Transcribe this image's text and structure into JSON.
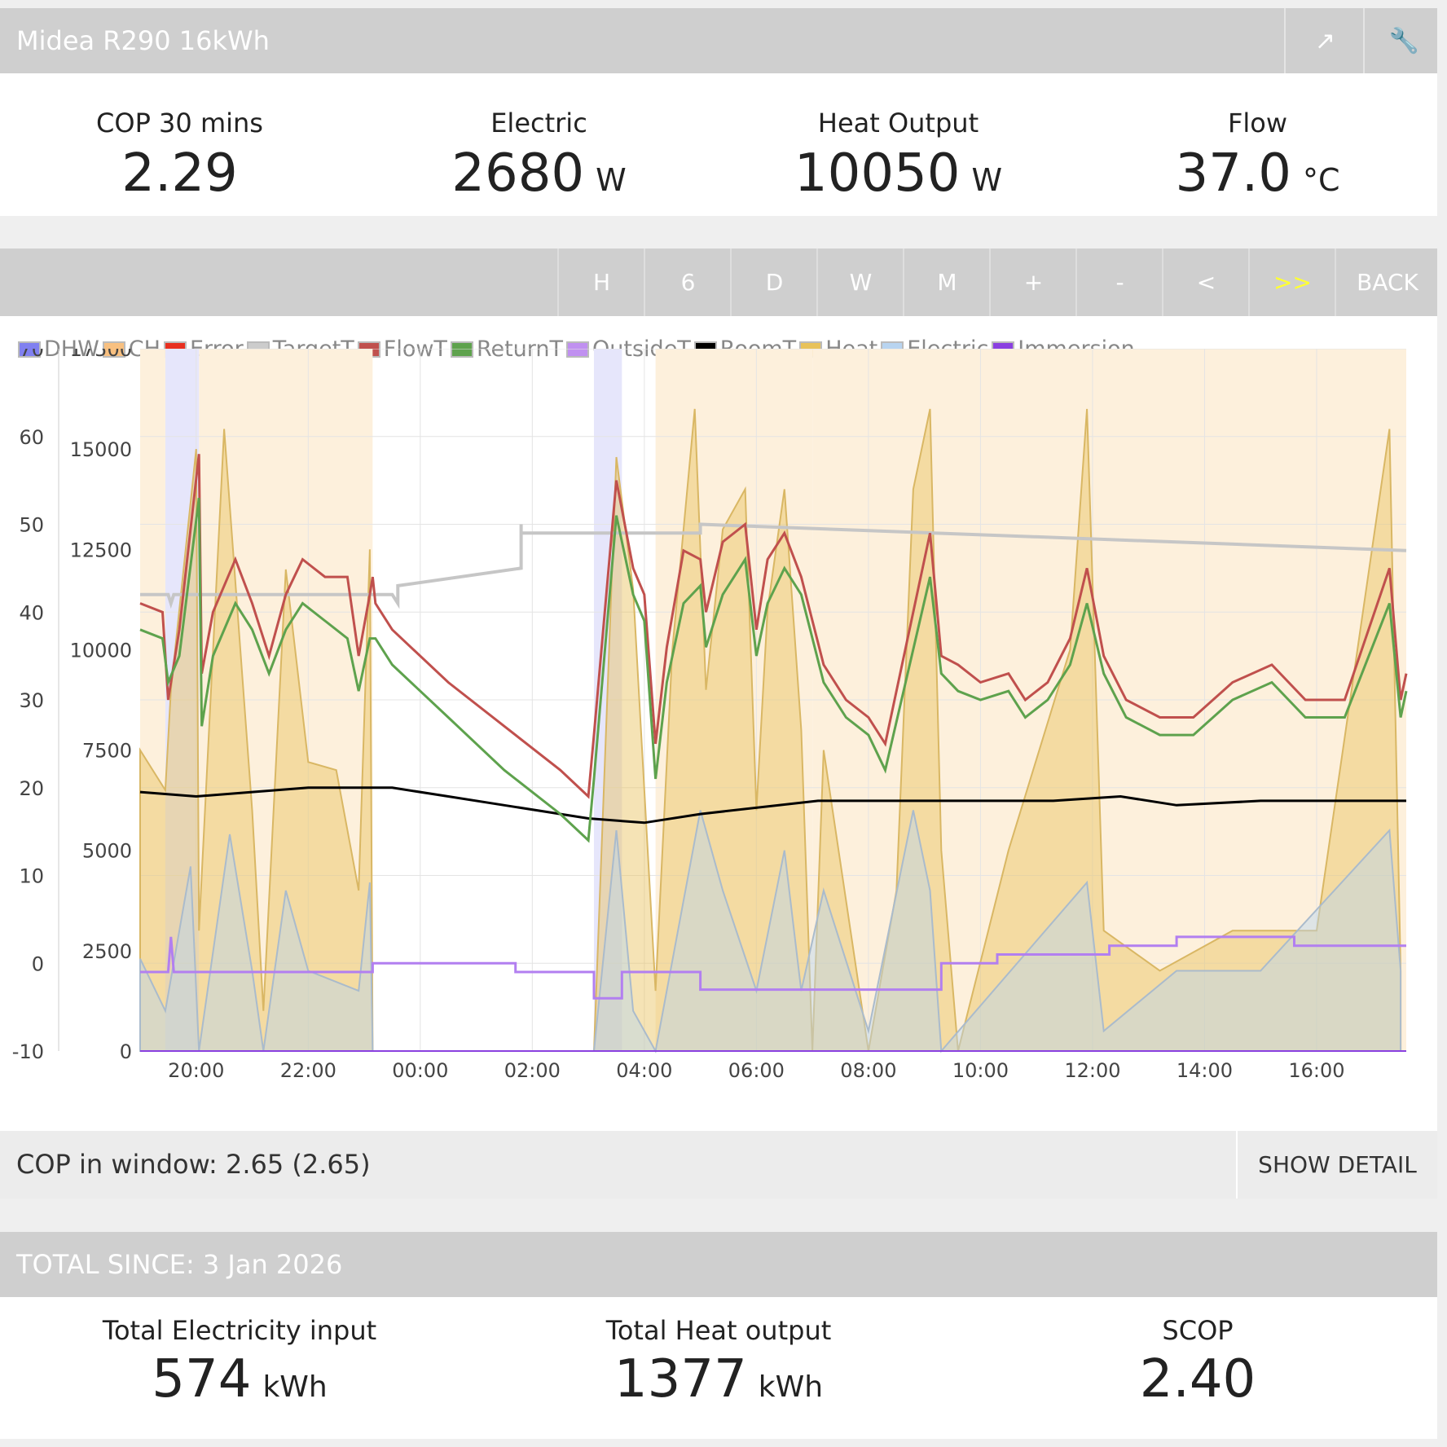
{
  "header": {
    "title": "Midea R290 16kWh",
    "share_icon": "share-icon",
    "settings_icon": "wrench-icon"
  },
  "stats": [
    {
      "label": "COP 30 mins",
      "value": "2.29",
      "unit": ""
    },
    {
      "label": "Electric",
      "value": "2680",
      "unit": "W"
    },
    {
      "label": "Heat Output",
      "value": "10050",
      "unit": "W"
    },
    {
      "label": "Flow",
      "value": "37.0",
      "unit": "°C"
    }
  ],
  "toolbar": {
    "buttons": [
      "H",
      "6",
      "D",
      "W",
      "M",
      "+",
      "-",
      "<",
      ">>",
      "BACK"
    ],
    "highlight_color": "#ffff33"
  },
  "legend": [
    {
      "name": "DHW",
      "color": "#8080f0"
    },
    {
      "name": "CH",
      "color": "#f8c080"
    },
    {
      "name": "Error",
      "color": "#e83020"
    },
    {
      "name": "TargetT",
      "color": "#cccccc"
    },
    {
      "name": "FlowT",
      "color": "#c0504d"
    },
    {
      "name": "ReturnT",
      "color": "#5ea24d"
    },
    {
      "name": "OutsideT",
      "color": "#c090f0"
    },
    {
      "name": "RoomT",
      "color": "#000000"
    },
    {
      "name": "Heat",
      "color": "#e8c25a"
    },
    {
      "name": "Electric",
      "color": "#b8d4f0"
    },
    {
      "name": "Immersion",
      "color": "#8a40e0"
    }
  ],
  "chart_data": {
    "type": "line",
    "x_unit": "hours since 19:00",
    "x_range": [
      0.0,
      22.6
    ],
    "x_ticks": [
      "20:00",
      "22:00",
      "00:00",
      "02:00",
      "04:00",
      "06:00",
      "08:00",
      "10:00",
      "12:00",
      "14:00",
      "16:00"
    ],
    "y_left": {
      "ticks": [
        70,
        60,
        50,
        40,
        30,
        20,
        10,
        0,
        -10
      ],
      "range": [
        -10,
        70
      ]
    },
    "y_right": {
      "ticks": [
        17500,
        15000,
        12500,
        10000,
        7500,
        5000,
        2500,
        0
      ],
      "range": [
        0,
        17500
      ]
    },
    "dhw_periods": [
      [
        0.45,
        1.05
      ],
      [
        8.1,
        8.6
      ]
    ],
    "ch_periods": [
      [
        0.0,
        0.45
      ],
      [
        1.05,
        4.15
      ],
      [
        9.2,
        12.0
      ],
      [
        12.0,
        22.6
      ]
    ],
    "series": [
      {
        "name": "TargetT",
        "axis": "left",
        "points": [
          [
            0,
            42
          ],
          [
            0.5,
            42
          ],
          [
            0.55,
            41
          ],
          [
            0.6,
            42
          ],
          [
            4.5,
            42
          ],
          [
            4.6,
            41
          ],
          [
            4.6,
            43
          ],
          [
            6.8,
            45
          ],
          [
            6.8,
            50
          ],
          [
            6.8,
            49
          ],
          [
            10,
            49
          ],
          [
            10,
            50
          ],
          [
            22.6,
            47
          ]
        ]
      },
      {
        "name": "FlowT",
        "axis": "left",
        "points": [
          [
            0,
            41
          ],
          [
            0.4,
            40
          ],
          [
            0.5,
            30
          ],
          [
            0.7,
            38
          ],
          [
            1.05,
            58
          ],
          [
            1.1,
            33
          ],
          [
            1.3,
            40
          ],
          [
            1.7,
            46
          ],
          [
            2.0,
            41
          ],
          [
            2.3,
            35
          ],
          [
            2.6,
            42
          ],
          [
            2.9,
            46
          ],
          [
            3.3,
            44
          ],
          [
            3.7,
            44
          ],
          [
            3.9,
            35
          ],
          [
            4.1,
            42
          ],
          [
            4.15,
            44
          ],
          [
            4.2,
            41
          ],
          [
            4.5,
            38
          ],
          [
            5.5,
            32
          ],
          [
            6.5,
            27
          ],
          [
            7.5,
            22
          ],
          [
            8.0,
            19
          ],
          [
            8.1,
            26
          ],
          [
            8.5,
            55
          ],
          [
            8.8,
            45
          ],
          [
            9.0,
            42
          ],
          [
            9.2,
            25
          ],
          [
            9.4,
            36
          ],
          [
            9.7,
            47
          ],
          [
            10,
            46
          ],
          [
            10.1,
            40
          ],
          [
            10.4,
            48
          ],
          [
            10.8,
            50
          ],
          [
            11.0,
            38
          ],
          [
            11.2,
            46
          ],
          [
            11.5,
            49
          ],
          [
            11.8,
            44
          ],
          [
            12.2,
            34
          ],
          [
            12.6,
            30
          ],
          [
            13.0,
            28
          ],
          [
            13.3,
            25
          ],
          [
            13.7,
            37
          ],
          [
            14.1,
            49
          ],
          [
            14.3,
            35
          ],
          [
            14.6,
            34
          ],
          [
            15.0,
            32
          ],
          [
            15.5,
            33
          ],
          [
            15.8,
            30
          ],
          [
            16.2,
            32
          ],
          [
            16.6,
            37
          ],
          [
            16.9,
            45
          ],
          [
            17.2,
            35
          ],
          [
            17.6,
            30
          ],
          [
            18.2,
            28
          ],
          [
            18.8,
            28
          ],
          [
            19.5,
            32
          ],
          [
            20.2,
            34
          ],
          [
            20.8,
            30
          ],
          [
            21.5,
            30
          ],
          [
            22.3,
            45
          ],
          [
            22.5,
            30
          ],
          [
            22.6,
            33
          ]
        ]
      },
      {
        "name": "ReturnT",
        "axis": "left",
        "points": [
          [
            0,
            38
          ],
          [
            0.4,
            37
          ],
          [
            0.5,
            32
          ],
          [
            0.7,
            35
          ],
          [
            1.05,
            53
          ],
          [
            1.1,
            27
          ],
          [
            1.3,
            35
          ],
          [
            1.7,
            41
          ],
          [
            2.0,
            38
          ],
          [
            2.3,
            33
          ],
          [
            2.6,
            38
          ],
          [
            2.9,
            41
          ],
          [
            3.3,
            39
          ],
          [
            3.7,
            37
          ],
          [
            3.9,
            31
          ],
          [
            4.1,
            37
          ],
          [
            4.2,
            37
          ],
          [
            4.5,
            34
          ],
          [
            5.5,
            28
          ],
          [
            6.5,
            22
          ],
          [
            7.5,
            17
          ],
          [
            8.0,
            14
          ],
          [
            8.1,
            21
          ],
          [
            8.5,
            51
          ],
          [
            8.8,
            42
          ],
          [
            9.0,
            39
          ],
          [
            9.2,
            21
          ],
          [
            9.4,
            32
          ],
          [
            9.7,
            41
          ],
          [
            10,
            43
          ],
          [
            10.1,
            36
          ],
          [
            10.4,
            42
          ],
          [
            10.8,
            46
          ],
          [
            11.0,
            35
          ],
          [
            11.2,
            41
          ],
          [
            11.5,
            45
          ],
          [
            11.8,
            42
          ],
          [
            12.2,
            32
          ],
          [
            12.6,
            28
          ],
          [
            13.0,
            26
          ],
          [
            13.3,
            22
          ],
          [
            13.7,
            33
          ],
          [
            14.1,
            44
          ],
          [
            14.3,
            33
          ],
          [
            14.6,
            31
          ],
          [
            15.0,
            30
          ],
          [
            15.5,
            31
          ],
          [
            15.8,
            28
          ],
          [
            16.2,
            30
          ],
          [
            16.6,
            34
          ],
          [
            16.9,
            41
          ],
          [
            17.2,
            33
          ],
          [
            17.6,
            28
          ],
          [
            18.2,
            26
          ],
          [
            18.8,
            26
          ],
          [
            19.5,
            30
          ],
          [
            20.2,
            32
          ],
          [
            20.8,
            28
          ],
          [
            21.5,
            28
          ],
          [
            22.3,
            41
          ],
          [
            22.5,
            28
          ],
          [
            22.6,
            31
          ]
        ]
      },
      {
        "name": "RoomT",
        "axis": "left",
        "points": [
          [
            0,
            19.5
          ],
          [
            1.0,
            19
          ],
          [
            2.0,
            19.5
          ],
          [
            3.0,
            20
          ],
          [
            4.5,
            20
          ],
          [
            5.5,
            19
          ],
          [
            6.5,
            18
          ],
          [
            8.0,
            16.5
          ],
          [
            9.0,
            16
          ],
          [
            10.0,
            17
          ],
          [
            12.1,
            18.5
          ],
          [
            16.3,
            18.5
          ],
          [
            17.5,
            19
          ],
          [
            18.5,
            18
          ],
          [
            20.0,
            18.5
          ],
          [
            22.6,
            18.5
          ]
        ]
      },
      {
        "name": "OutsideT",
        "axis": "left",
        "points": [
          [
            0,
            -1
          ],
          [
            0.5,
            -1
          ],
          [
            0.55,
            3
          ],
          [
            0.6,
            -1
          ],
          [
            4.15,
            -1
          ],
          [
            4.15,
            0
          ],
          [
            6.7,
            0
          ],
          [
            6.7,
            -1
          ],
          [
            8.1,
            -1
          ],
          [
            8.1,
            -4
          ],
          [
            8.6,
            -4
          ],
          [
            8.6,
            -1
          ],
          [
            10.0,
            -1
          ],
          [
            10.0,
            -3
          ],
          [
            14.3,
            -3
          ],
          [
            14.3,
            0
          ],
          [
            15.3,
            0
          ],
          [
            15.3,
            1
          ],
          [
            17.3,
            1
          ],
          [
            17.3,
            2
          ],
          [
            18.5,
            2
          ],
          [
            18.5,
            3
          ],
          [
            20.6,
            3
          ],
          [
            20.6,
            2
          ],
          [
            22.6,
            2
          ]
        ]
      },
      {
        "name": "Heat",
        "axis": "right",
        "points": [
          [
            0,
            7500
          ],
          [
            0.45,
            6500
          ],
          [
            0.55,
            9000
          ],
          [
            1.0,
            15000
          ],
          [
            1.05,
            3000
          ],
          [
            1.5,
            15500
          ],
          [
            2.0,
            6000
          ],
          [
            2.2,
            1000
          ],
          [
            2.6,
            12000
          ],
          [
            3.0,
            7200
          ],
          [
            3.5,
            7000
          ],
          [
            3.9,
            4000
          ],
          [
            4.1,
            12500
          ],
          [
            4.15,
            0
          ],
          [
            8.1,
            0
          ],
          [
            8.5,
            14800
          ],
          [
            8.8,
            11500
          ],
          [
            9.2,
            1500
          ],
          [
            9.5,
            10000
          ],
          [
            9.9,
            16000
          ],
          [
            10.1,
            9000
          ],
          [
            10.4,
            13000
          ],
          [
            10.8,
            14000
          ],
          [
            11.0,
            6000
          ],
          [
            11.2,
            11000
          ],
          [
            11.5,
            14000
          ],
          [
            11.8,
            8000
          ],
          [
            12.0,
            0
          ],
          [
            12.2,
            7500
          ],
          [
            13.0,
            0
          ],
          [
            13.5,
            4000
          ],
          [
            13.8,
            14000
          ],
          [
            14.1,
            16000
          ],
          [
            14.3,
            5000
          ],
          [
            14.6,
            0
          ],
          [
            15.5,
            5000
          ],
          [
            16.6,
            10000
          ],
          [
            16.9,
            16000
          ],
          [
            17.2,
            3000
          ],
          [
            18.2,
            2000
          ],
          [
            19.5,
            3000
          ],
          [
            21.0,
            3000
          ],
          [
            22.3,
            15500
          ],
          [
            22.5,
            2000
          ]
        ]
      },
      {
        "name": "Electric",
        "axis": "right",
        "points": [
          [
            0,
            2300
          ],
          [
            0.45,
            1000
          ],
          [
            0.9,
            4600
          ],
          [
            1.05,
            0
          ],
          [
            1.6,
            5400
          ],
          [
            2.0,
            2000
          ],
          [
            2.2,
            0
          ],
          [
            2.6,
            4000
          ],
          [
            3.0,
            2000
          ],
          [
            3.9,
            1500
          ],
          [
            4.1,
            4200
          ],
          [
            4.15,
            0
          ],
          [
            8.1,
            0
          ],
          [
            8.5,
            5500
          ],
          [
            8.8,
            1000
          ],
          [
            9.2,
            0
          ],
          [
            10.0,
            6000
          ],
          [
            10.4,
            4000
          ],
          [
            11.0,
            1500
          ],
          [
            11.5,
            5000
          ],
          [
            11.8,
            1500
          ],
          [
            12.2,
            4000
          ],
          [
            13.0,
            500
          ],
          [
            13.8,
            6000
          ],
          [
            14.1,
            4000
          ],
          [
            14.3,
            0
          ],
          [
            16.9,
            4200
          ],
          [
            17.2,
            500
          ],
          [
            18.5,
            2000
          ],
          [
            20.0,
            2000
          ],
          [
            22.3,
            5500
          ],
          [
            22.5,
            2000
          ]
        ]
      }
    ]
  },
  "footer": {
    "cop_window": "COP in window: 2.65 (2.65)",
    "show_detail": "SHOW DETAIL",
    "total_since": "TOTAL SINCE: 3 Jan 2026"
  },
  "totals": [
    {
      "label": "Total Electricity input",
      "value": "574",
      "unit": "kWh"
    },
    {
      "label": "Total Heat output",
      "value": "1377",
      "unit": "kWh"
    },
    {
      "label": "SCOP",
      "value": "2.40",
      "unit": ""
    }
  ]
}
